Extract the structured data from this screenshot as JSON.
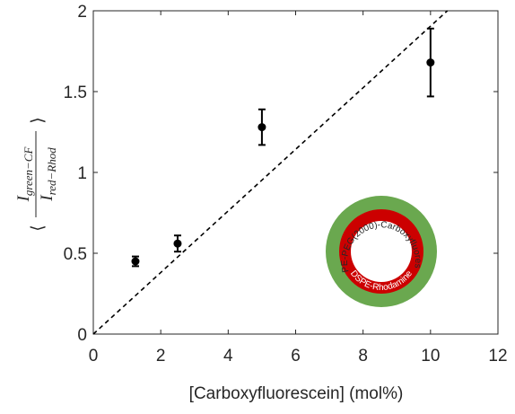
{
  "chart_data": {
    "type": "scatter",
    "xlabel": "[Carboxyfluorescein] (mol%)",
    "ylabel": {
      "numerator": "I",
      "numerator_sub": "green−CF",
      "denominator": "I",
      "denominator_sub": "red−Rhod"
    },
    "xlim": [
      0,
      12
    ],
    "xticks": [
      0,
      2,
      4,
      6,
      8,
      10,
      12
    ],
    "ylim": [
      0,
      2
    ],
    "yticks": [
      0,
      0.5,
      1,
      1.5,
      2
    ],
    "series": [
      {
        "color": "#000000",
        "x": [
          1.25,
          2.5,
          5,
          10
        ],
        "values": [
          0.45,
          0.56,
          1.28,
          1.68
        ],
        "errors": [
          0.03,
          0.05,
          0.11,
          0.21
        ]
      }
    ],
    "reference_line": {
      "color": "#000000",
      "style": "dashed",
      "x": [
        0,
        10.5
      ],
      "values": [
        0,
        2
      ]
    },
    "inset": {
      "outer_label": "DSPE-PEG(2000)-Carboxyfluorescein",
      "inner_label": "DSPE-Rhodamine",
      "outer_color": "#6aa84f",
      "inner_color": "#cc0000"
    }
  }
}
